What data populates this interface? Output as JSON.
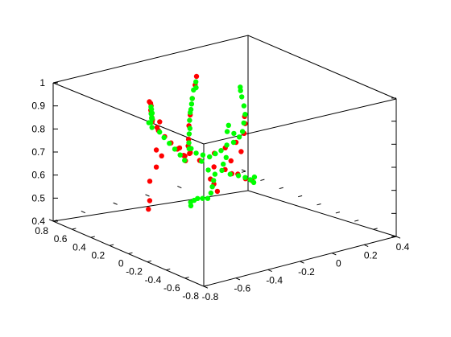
{
  "chart_data": {
    "type": "scatter",
    "title": "",
    "xlabel": "",
    "ylabel": "",
    "zlabel": "",
    "xlim": [
      -0.8,
      0.4
    ],
    "ylim": [
      -0.8,
      0.8
    ],
    "zlim": [
      0.4,
      1.0
    ],
    "grid": false,
    "legend": "none",
    "x_ticks": [
      "-0.8",
      "-0.6",
      "-0.4",
      "-0.2",
      "0",
      "0.2",
      "0.4"
    ],
    "y_ticks": [
      "-0.8",
      "-0.6",
      "-0.4",
      "-0.2",
      "0",
      "0.2",
      "0.4",
      "0.6",
      "0.8"
    ],
    "z_ticks": [
      "0.4",
      "0.5",
      "0.6",
      "0.7",
      "0.8",
      "0.9",
      "1"
    ],
    "series": [
      {
        "name": "red",
        "color": "#ff0000",
        "points": [
          [
            -0.33,
            0.55,
            0.79
          ],
          [
            -0.31,
            0.58,
            0.79
          ],
          [
            -0.29,
            0.62,
            0.79
          ],
          [
            -0.27,
            0.66,
            0.8
          ],
          [
            -0.25,
            0.7,
            0.8
          ],
          [
            -0.23,
            0.73,
            0.81
          ],
          [
            -0.21,
            0.77,
            0.81
          ],
          [
            -0.2,
            0.8,
            0.81
          ],
          [
            -0.3,
            0.52,
            0.79
          ],
          [
            -0.34,
            0.48,
            0.78
          ],
          [
            -0.32,
            0.5,
            0.76
          ],
          [
            -0.31,
            0.45,
            0.74
          ],
          [
            -0.3,
            0.4,
            0.72
          ],
          [
            -0.29,
            0.35,
            0.7
          ],
          [
            -0.28,
            0.3,
            0.68
          ],
          [
            -0.28,
            0.28,
            0.66
          ],
          [
            -0.27,
            0.36,
            0.7
          ],
          [
            -0.26,
            0.32,
            0.67
          ],
          [
            -0.38,
            0.42,
            0.7
          ],
          [
            -0.37,
            0.38,
            0.68
          ],
          [
            -0.45,
            0.3,
            0.66
          ],
          [
            -0.52,
            0.25,
            0.62
          ],
          [
            -0.55,
            0.2,
            0.55
          ],
          [
            -0.57,
            0.18,
            0.52
          ],
          [
            -0.25,
            0.28,
            0.69
          ],
          [
            -0.24,
            0.32,
            0.71
          ],
          [
            -0.22,
            0.35,
            0.73
          ],
          [
            -0.2,
            0.38,
            0.78
          ],
          [
            -0.18,
            0.4,
            0.82
          ],
          [
            -0.15,
            0.43,
            0.88
          ],
          [
            -0.12,
            0.45,
            0.93
          ],
          [
            -0.1,
            0.47,
            0.96
          ],
          [
            -0.22,
            0.34,
            0.67
          ],
          [
            -0.18,
            0.3,
            0.64
          ],
          [
            -0.12,
            0.25,
            0.61
          ],
          [
            -0.08,
            0.2,
            0.6
          ],
          [
            -0.03,
            0.15,
            0.58
          ],
          [
            0.0,
            0.12,
            0.56
          ],
          [
            0.03,
            0.1,
            0.55
          ],
          [
            -0.05,
            0.18,
            0.58
          ],
          [
            -0.1,
            0.28,
            0.66
          ],
          [
            -0.05,
            0.25,
            0.68
          ],
          [
            0.0,
            0.22,
            0.7
          ],
          [
            0.05,
            0.22,
            0.73
          ],
          [
            0.08,
            0.26,
            0.76
          ],
          [
            0.1,
            0.3,
            0.78
          ],
          [
            0.02,
            0.2,
            0.66
          ],
          [
            -0.02,
            0.24,
            0.62
          ],
          [
            -0.15,
            0.2,
            0.55
          ],
          [
            -0.14,
            0.18,
            0.52
          ],
          [
            -0.16,
            0.22,
            0.57
          ]
        ]
      },
      {
        "name": "green",
        "color": "#00ff00",
        "points": [
          [
            -0.35,
            0.55,
            0.79
          ],
          [
            -0.32,
            0.58,
            0.78
          ],
          [
            -0.3,
            0.6,
            0.79
          ],
          [
            -0.28,
            0.64,
            0.78
          ],
          [
            -0.26,
            0.68,
            0.79
          ],
          [
            -0.24,
            0.71,
            0.8
          ],
          [
            -0.22,
            0.75,
            0.8
          ],
          [
            -0.23,
            0.72,
            0.78
          ],
          [
            -0.25,
            0.69,
            0.77
          ],
          [
            -0.36,
            0.5,
            0.78
          ],
          [
            -0.33,
            0.47,
            0.76
          ],
          [
            -0.32,
            0.44,
            0.74
          ],
          [
            -0.31,
            0.4,
            0.72
          ],
          [
            -0.3,
            0.36,
            0.7
          ],
          [
            -0.29,
            0.32,
            0.68
          ],
          [
            -0.28,
            0.29,
            0.66
          ],
          [
            -0.24,
            0.31,
            0.7
          ],
          [
            -0.23,
            0.33,
            0.72
          ],
          [
            -0.21,
            0.36,
            0.75
          ],
          [
            -0.19,
            0.39,
            0.8
          ],
          [
            -0.17,
            0.41,
            0.84
          ],
          [
            -0.15,
            0.43,
            0.88
          ],
          [
            -0.13,
            0.45,
            0.91
          ],
          [
            -0.11,
            0.46,
            0.94
          ],
          [
            -0.12,
            0.44,
            0.92
          ],
          [
            -0.16,
            0.42,
            0.86
          ],
          [
            -0.18,
            0.4,
            0.83
          ],
          [
            -0.2,
            0.37,
            0.77
          ],
          [
            -0.21,
            0.34,
            0.69
          ],
          [
            -0.19,
            0.32,
            0.67
          ],
          [
            -0.16,
            0.3,
            0.66
          ],
          [
            -0.13,
            0.28,
            0.65
          ],
          [
            -0.1,
            0.27,
            0.66
          ],
          [
            -0.07,
            0.26,
            0.67
          ],
          [
            -0.04,
            0.25,
            0.69
          ],
          [
            -0.01,
            0.23,
            0.7
          ],
          [
            0.02,
            0.22,
            0.72
          ],
          [
            0.04,
            0.22,
            0.74
          ],
          [
            0.06,
            0.24,
            0.77
          ],
          [
            0.08,
            0.26,
            0.8
          ],
          [
            0.09,
            0.29,
            0.83
          ],
          [
            0.1,
            0.33,
            0.86
          ],
          [
            0.11,
            0.36,
            0.88
          ],
          [
            0.12,
            0.38,
            0.89
          ],
          [
            0.0,
            0.3,
            0.76
          ],
          [
            -0.02,
            0.28,
            0.74
          ],
          [
            0.01,
            0.26,
            0.73
          ],
          [
            -0.05,
            0.24,
            0.64
          ],
          [
            -0.08,
            0.22,
            0.62
          ],
          [
            -0.1,
            0.2,
            0.6
          ],
          [
            -0.06,
            0.18,
            0.58
          ],
          [
            -0.02,
            0.16,
            0.57
          ],
          [
            0.01,
            0.14,
            0.56
          ],
          [
            0.03,
            0.12,
            0.55
          ],
          [
            0.04,
            0.1,
            0.54
          ],
          [
            0.05,
            0.11,
            0.56
          ],
          [
            -0.12,
            0.24,
            0.58
          ],
          [
            -0.14,
            0.22,
            0.56
          ],
          [
            -0.16,
            0.2,
            0.54
          ],
          [
            -0.18,
            0.18,
            0.52
          ],
          [
            -0.2,
            0.18,
            0.5
          ],
          [
            -0.22,
            0.2,
            0.5
          ],
          [
            -0.24,
            0.22,
            0.5
          ],
          [
            -0.25,
            0.24,
            0.49
          ],
          [
            -0.26,
            0.26,
            0.48
          ],
          [
            -0.27,
            0.24,
            0.47
          ],
          [
            -0.15,
            0.26,
            0.6
          ],
          [
            -0.18,
            0.28,
            0.64
          ]
        ]
      }
    ]
  }
}
